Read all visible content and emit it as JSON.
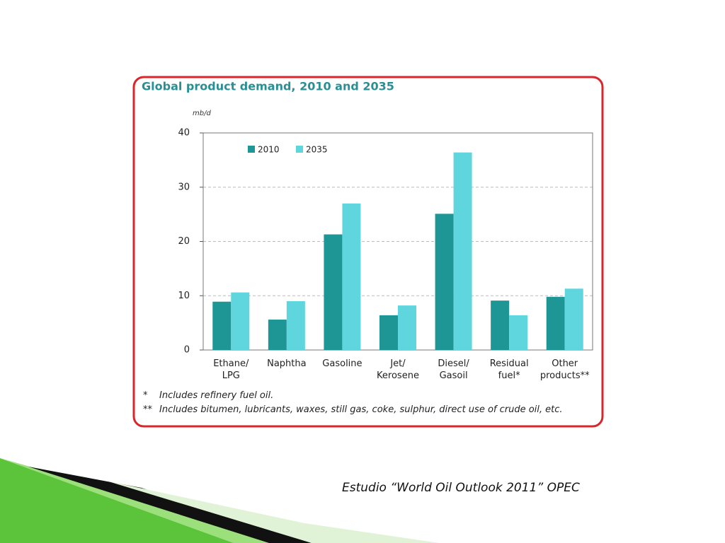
{
  "chart_data": {
    "type": "bar",
    "title": "Global product demand, 2010 and 2035",
    "y_unit": "mb/d",
    "categories": [
      "Ethane/\nLPG",
      "Naphtha",
      "Gasoline",
      "Jet/\nKerosene",
      "Diesel/\nGasoil",
      "Residual\nfuel*",
      "Other\nproducts**"
    ],
    "series": [
      {
        "name": "2010",
        "color": "#1f9696",
        "values": [
          8.9,
          5.6,
          21.3,
          6.4,
          25.1,
          9.1,
          9.8
        ]
      },
      {
        "name": "2035",
        "color": "#5fd5dd",
        "values": [
          10.6,
          9.0,
          27.0,
          8.2,
          36.4,
          6.4,
          11.3
        ]
      }
    ],
    "ylim": [
      0,
      40
    ],
    "yticks": [
      0,
      10,
      20,
      30,
      40
    ],
    "grid": true,
    "legend": "top-left",
    "footnotes": [
      {
        "marker": "*",
        "text": "Includes refinery fuel oil."
      },
      {
        "marker": "**",
        "text": "Includes bitumen, lubricants, waxes, still gas, coke, sulphur, direct use of crude oil, etc."
      }
    ]
  },
  "caption": "Estudio “World Oil Outlook 2011” OPEC"
}
